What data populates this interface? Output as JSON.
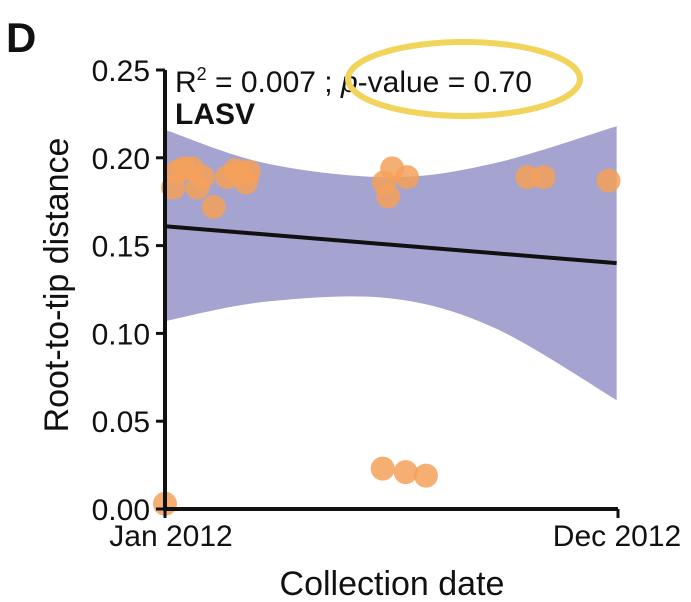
{
  "panel_label": "D",
  "colors": {
    "points": "#F4A15A",
    "band": "#A5A3CF",
    "trend_line": "#111111",
    "axis": "#111111",
    "highlight_ellipse": "#F2D35C"
  },
  "stats": {
    "r2_label": "R",
    "r2_sup": "2",
    "r2_value": " = 0.007",
    "separator": " ; ",
    "p_label": "p",
    "p_value": "-value = 0.70"
  },
  "chart_data": {
    "type": "scatter",
    "title": "LASV",
    "xlabel": "Collection date",
    "ylabel": "Root-to-tip distance",
    "xlim": [
      "2012-01-01",
      "2012-12-01"
    ],
    "ylim": [
      0,
      0.25
    ],
    "x_ticks": [
      {
        "value": "2012-01-01",
        "label": "Jan 2012"
      },
      {
        "value": "2012-12-01",
        "label": "Dec 2012"
      }
    ],
    "y_ticks": [
      {
        "value": 0.0,
        "label": "0.00"
      },
      {
        "value": 0.05,
        "label": "0.05"
      },
      {
        "value": 0.1,
        "label": "0.10"
      },
      {
        "value": 0.15,
        "label": "0.15"
      },
      {
        "value": 0.2,
        "label": "0.20"
      },
      {
        "value": 0.25,
        "label": "0.25"
      }
    ],
    "points": [
      {
        "x": "2012-01-01",
        "y": 0.003
      },
      {
        "x": "2012-01-07",
        "y": 0.183
      },
      {
        "x": "2012-01-10",
        "y": 0.192
      },
      {
        "x": "2012-01-15",
        "y": 0.194
      },
      {
        "x": "2012-01-21",
        "y": 0.194
      },
      {
        "x": "2012-01-25",
        "y": 0.183
      },
      {
        "x": "2012-01-29",
        "y": 0.189
      },
      {
        "x": "2012-02-06",
        "y": 0.172
      },
      {
        "x": "2012-02-16",
        "y": 0.189
      },
      {
        "x": "2012-02-22",
        "y": 0.193
      },
      {
        "x": "2012-02-26",
        "y": 0.191
      },
      {
        "x": "2012-03-01",
        "y": 0.186
      },
      {
        "x": "2012-03-03",
        "y": 0.192
      },
      {
        "x": "2012-06-10",
        "y": 0.023
      },
      {
        "x": "2012-06-11",
        "y": 0.186
      },
      {
        "x": "2012-06-14",
        "y": 0.178
      },
      {
        "x": "2012-06-17",
        "y": 0.194
      },
      {
        "x": "2012-06-27",
        "y": 0.021
      },
      {
        "x": "2012-06-28",
        "y": 0.189
      },
      {
        "x": "2012-07-12",
        "y": 0.019
      },
      {
        "x": "2012-09-25",
        "y": 0.189
      },
      {
        "x": "2012-10-07",
        "y": 0.189
      },
      {
        "x": "2012-11-24",
        "y": 0.187
      }
    ],
    "trend_line": {
      "x": [
        "2012-01-01",
        "2012-11-30"
      ],
      "y": [
        0.161,
        0.14
      ]
    },
    "confidence_band": {
      "x": [
        "2012-01-01",
        "2012-03-15",
        "2012-06-15",
        "2012-09-01",
        "2012-11-30"
      ],
      "upper": [
        0.216,
        0.197,
        0.189,
        0.197,
        0.218
      ],
      "lower": [
        0.107,
        0.118,
        0.12,
        0.103,
        0.062
      ]
    },
    "grid": false,
    "legend": "none"
  }
}
